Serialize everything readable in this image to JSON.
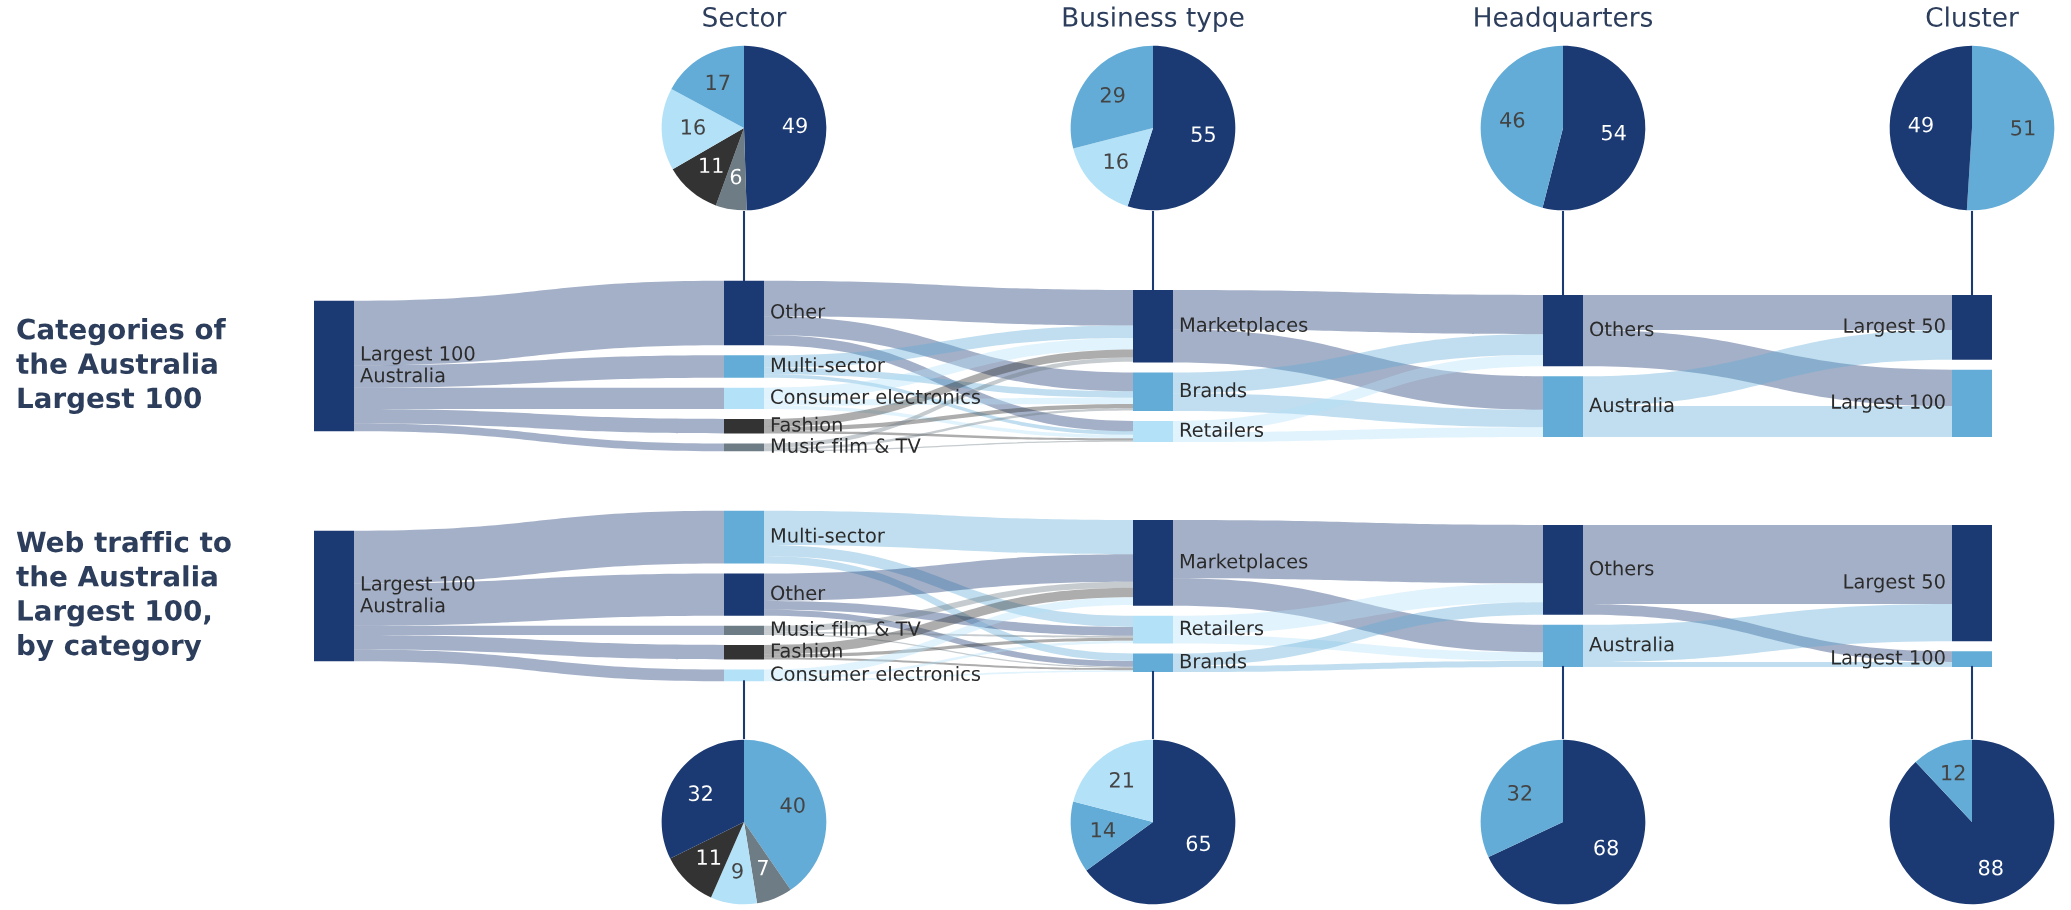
{
  "chart_data": [
    {
      "type": "pie",
      "title": "Sector",
      "categories": [
        null,
        null,
        null,
        null,
        null
      ],
      "values": [
        49,
        6,
        11,
        16,
        17
      ],
      "colors": [
        "#1b3a73",
        "#6e7c85",
        "#333333",
        "#b3e1f8",
        "#62acd7"
      ],
      "data_labels": true
    },
    {
      "type": "pie",
      "title": "Business type",
      "categories": [
        null,
        null,
        null
      ],
      "values": [
        55,
        16,
        29
      ],
      "colors": [
        "#1b3a73",
        "#b3e1f8",
        "#62acd7"
      ],
      "data_labels": true
    },
    {
      "type": "pie",
      "title": "Headquarters",
      "categories": [
        null,
        null
      ],
      "values": [
        54,
        46
      ],
      "colors": [
        "#1b3a73",
        "#62acd7"
      ],
      "data_labels": true
    },
    {
      "type": "pie",
      "title": "Cluster",
      "categories": [
        null,
        null
      ],
      "values": [
        51,
        49
      ],
      "colors": [
        "#62acd7",
        "#1b3a73"
      ],
      "data_labels": true
    },
    {
      "type": "other",
      "title": "Categories of\nthe Australia\nLargest 100",
      "annotations": [
        "Largest 100\nAustralia",
        "Other",
        "Multi-sector",
        "Consumer electronics",
        "Fashion",
        "Music film & TV",
        "Marketplaces",
        "Brands",
        "Retailers",
        "Others",
        "Australia",
        "Largest 50",
        "Largest 100"
      ],
      "colors": [
        "#1b3a73",
        "#1b3a73",
        "#62acd7",
        "#b3e1f8",
        "#333333",
        "#6e7c85",
        "#1b3a73",
        "#62acd7",
        "#b3e1f8",
        "#1b3a73",
        "#62acd7",
        "#1b3a73",
        "#62acd7"
      ]
    },
    {
      "type": "other",
      "title": "Web traffic to\nthe Australia\nLargest 100,\nby category",
      "annotations": [
        "Largest 100\nAustralia",
        "Multi-sector",
        "Other",
        "Music film & TV",
        "Fashion",
        "Consumer electronics",
        "Marketplaces",
        "Retailers",
        "Brands",
        "Others",
        "Australia",
        "Largest 50",
        "Largest 100"
      ],
      "colors": [
        "#1b3a73",
        "#62acd7",
        "#1b3a73",
        "#6e7c85",
        "#333333",
        "#b3e1f8",
        "#1b3a73",
        "#b3e1f8",
        "#62acd7",
        "#1b3a73",
        "#62acd7",
        "#1b3a73",
        "#62acd7"
      ]
    },
    {
      "type": "pie",
      "categories": [
        null,
        null,
        null,
        null,
        null
      ],
      "values": [
        40,
        7,
        9,
        11,
        32
      ],
      "colors": [
        "#62acd7",
        "#6e7c85",
        "#b3e1f8",
        "#333333",
        "#1b3a73"
      ],
      "data_labels": true
    },
    {
      "type": "pie",
      "categories": [
        null,
        null,
        null
      ],
      "values": [
        65,
        14,
        21
      ],
      "colors": [
        "#1b3a73",
        "#62acd7",
        "#b3e1f8"
      ],
      "data_labels": true
    },
    {
      "type": "pie",
      "categories": [
        null,
        null
      ],
      "values": [
        68,
        32
      ],
      "colors": [
        "#1b3a73",
        "#62acd7"
      ],
      "data_labels": true
    },
    {
      "type": "pie",
      "categories": [
        null,
        null
      ],
      "values": [
        88,
        12
      ],
      "colors": [
        "#1b3a73",
        "#62acd7"
      ],
      "data_labels": true
    }
  ]
}
